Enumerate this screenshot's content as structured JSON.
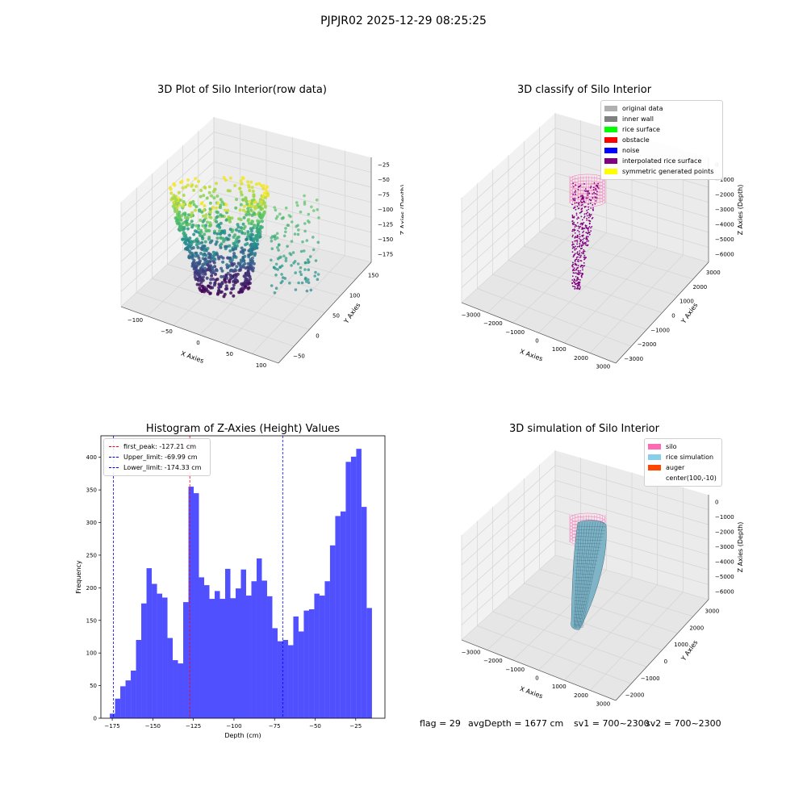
{
  "figure": {
    "suptitle": "PJPJR02 2025-12-29 08:25:25",
    "footer": {
      "flag": "flag = 29",
      "avg": "avgDepth = 1677 cm",
      "sv1": "sv1 = 700~2300",
      "sv2": "sv2 = 700~2300"
    }
  },
  "panels": {
    "raw": {
      "title": "3D Plot of Silo Interior(row data)",
      "xlabel": "X Axies",
      "ylabel": "Y Axies",
      "zlabel": "Z Axies (Depth)",
      "xticks": [
        "−100",
        "−50",
        "0",
        "50",
        "100"
      ],
      "yticks": [
        "−50",
        "0",
        "50",
        "100",
        "150"
      ],
      "zticks": [
        "−25",
        "−50",
        "−75",
        "−100",
        "−125",
        "−150",
        "−175"
      ]
    },
    "classify": {
      "title": "3D classify of Silo Interior",
      "xlabel": "X Axies",
      "ylabel": "Y Axies",
      "zlabel": "Z Axies (Depth)",
      "xticks": [
        "−3000",
        "−2000",
        "−1000",
        "0",
        "1000",
        "2000",
        "3000"
      ],
      "yticks": [
        "−3000",
        "−2000",
        "−1000",
        "0",
        "1000",
        "2000",
        "3000"
      ],
      "zticks": [
        "0",
        "−1000",
        "−2000",
        "−3000",
        "−4000",
        "−5000",
        "−6000"
      ],
      "legend": [
        {
          "label": "original data",
          "color": "#b0b0b0"
        },
        {
          "label": "inner wall",
          "color": "#808080"
        },
        {
          "label": "rice surface",
          "color": "#00ff00"
        },
        {
          "label": "obstacle",
          "color": "#ff0000"
        },
        {
          "label": "noise",
          "color": "#0000ff"
        },
        {
          "label": "interpolated rice surface",
          "color": "#800080"
        },
        {
          "label": "symmetric generated points",
          "color": "#ffff00"
        }
      ]
    },
    "simulation": {
      "title": "3D simulation of Silo Interior",
      "xlabel": "X Axies",
      "ylabel": "Y Axies",
      "zlabel": "Z Axies (Depth)",
      "xticks": [
        "−3000",
        "−2000",
        "−1000",
        "0",
        "1000",
        "2000",
        "3000"
      ],
      "yticks": [
        "−2000",
        "−1000",
        "0",
        "1000",
        "2000",
        "3000"
      ],
      "zticks": [
        "0",
        "−1000",
        "−2000",
        "−3000",
        "−4000",
        "−5000",
        "−6000"
      ],
      "legend": [
        {
          "label": "silo",
          "color": "#ff69b4"
        },
        {
          "label": "rice simulation",
          "color": "#87ceeb"
        },
        {
          "label": "auger",
          "color": "#ff4500"
        },
        {
          "label": "center(100,-10)",
          "color": ""
        }
      ]
    }
  },
  "chart_data": {
    "type": "bar",
    "title": "Histogram of Z-Axies (Height) Values",
    "xlabel": "Depth (cm)",
    "ylabel": "Frequency",
    "xlim": [
      -182,
      -7
    ],
    "ylim": [
      0,
      433
    ],
    "xticks": [
      -175,
      -150,
      -125,
      -100,
      -75,
      -50,
      -25
    ],
    "yticks": [
      0,
      50,
      100,
      150,
      200,
      250,
      300,
      350,
      400
    ],
    "bin_start": -176.5,
    "bin_width": 3.23,
    "bar_color": "#5050ff",
    "values": [
      7,
      30,
      49,
      58,
      73,
      120,
      176,
      230,
      206,
      191,
      185,
      123,
      89,
      84,
      178,
      355,
      345,
      216,
      204,
      183,
      195,
      183,
      229,
      184,
      199,
      228,
      188,
      210,
      245,
      211,
      187,
      138,
      118,
      120,
      112,
      156,
      133,
      165,
      167,
      191,
      188,
      210,
      265,
      310,
      317,
      393,
      401,
      413,
      324,
      169
    ],
    "lines": [
      {
        "label": "first_peak: -127.21 cm",
        "x": -127.21,
        "color": "#ff0000"
      },
      {
        "label": "Upper_limit: -69.99 cm",
        "x": -69.99,
        "color": "#0000ff"
      },
      {
        "label": "Lower_limit: -174.33 cm",
        "x": -174.33,
        "color": "#0000ff"
      }
    ]
  }
}
